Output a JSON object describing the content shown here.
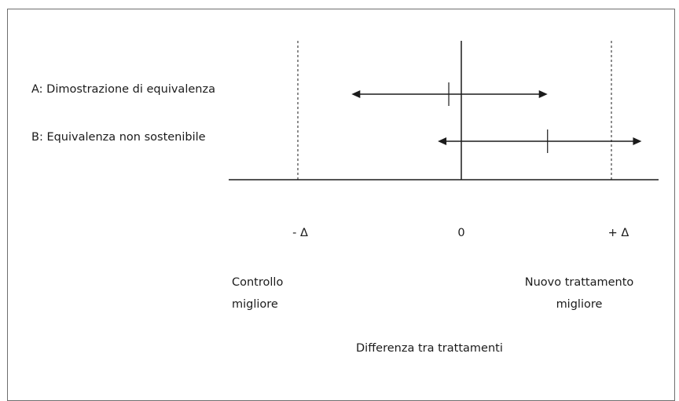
{
  "rows": [
    {
      "label": "A: Dimostrazione di equivalenza",
      "ci_low": -0.7,
      "point": -0.08,
      "ci_high": 0.55
    },
    {
      "label": "B: Equivalenza non sostenibile",
      "ci_low": -0.15,
      "point": 0.55,
      "ci_high": 1.15
    }
  ],
  "axis": {
    "ticks": {
      "neg": "- Δ",
      "zero": "0",
      "pos": "+ Δ"
    },
    "title": "Differenza tra trattamenti",
    "left_note": [
      "Controllo",
      "migliore"
    ],
    "right_note": [
      "Nuovo trattamento",
      "migliore"
    ]
  },
  "margin_delta": 1,
  "colors": {
    "line": "#1b1b1b",
    "frame": "#6f6f6f"
  }
}
